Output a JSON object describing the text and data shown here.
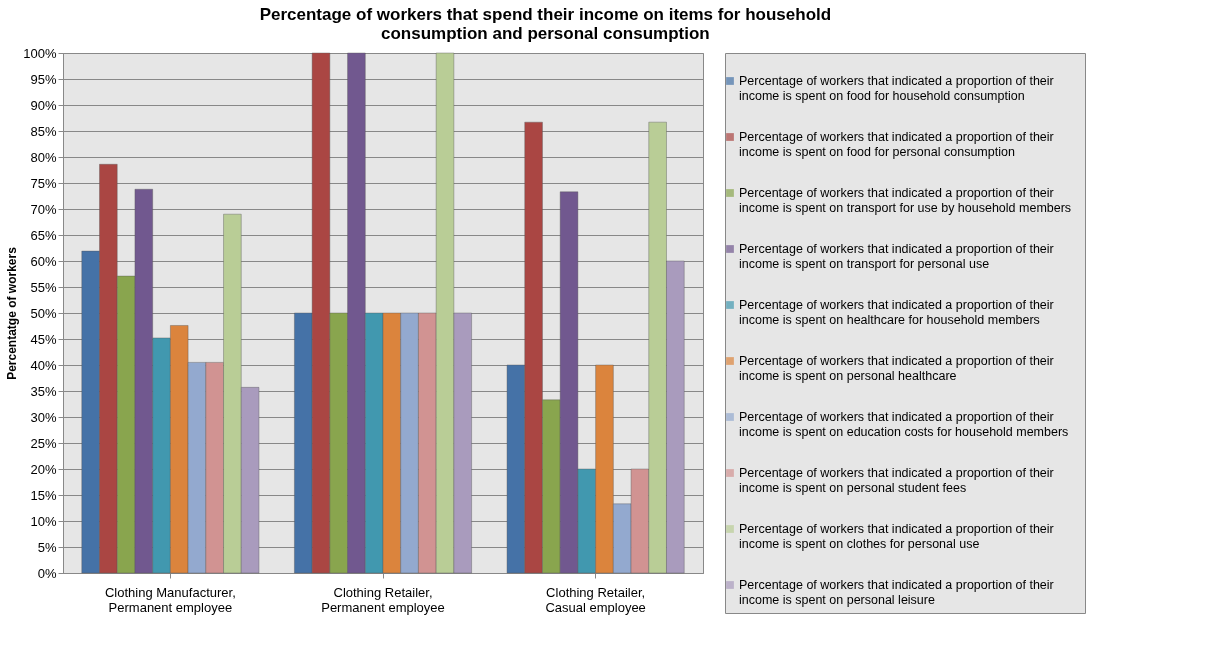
{
  "chart_data": {
    "type": "bar",
    "title": "Percentage of workers that spend their income on items for household consumption and personal consumption",
    "ylabel": "Percentatge of workers",
    "categories": [
      "Clothing Manufacturer, Permanent employee",
      "Clothing Retailer, Permanent employee",
      "Clothing Retailer, Casual employee"
    ],
    "series": [
      {
        "name": "Percentage of workers that indicated a proportion of their income is spent on food for household consumption",
        "color": "#4572a7",
        "values": [
          61.9,
          50,
          40
        ]
      },
      {
        "name": "Percentage of workers that indicated a proportion of their income is spent on food for personal consumption",
        "color": "#aa4643",
        "values": [
          78.6,
          100,
          86.7
        ]
      },
      {
        "name": "Percentage of workers that indicated a proportion of their income is spent on transport for use by household members",
        "color": "#89a54e",
        "values": [
          57.1,
          50,
          33.3
        ]
      },
      {
        "name": "Percentage of workers that indicated a proportion of their income is spent on transport for personal use",
        "color": "#71588f",
        "values": [
          73.8,
          100,
          73.3
        ]
      },
      {
        "name": "Percentage of workers that indicated a proportion of their income is spent on healthcare for household members",
        "color": "#4198af",
        "values": [
          45.2,
          50,
          20
        ]
      },
      {
        "name": "Percentage of workers that indicated a proportion of their income is spent on personal healthcare",
        "color": "#db843d",
        "values": [
          47.6,
          50,
          40
        ]
      },
      {
        "name": "Percentage of workers that indicated a proportion of their income is spent on education costs for household members",
        "color": "#93a9cf",
        "values": [
          40.5,
          50,
          13.3
        ]
      },
      {
        "name": "Percentage of workers that indicated a proportion of their income is spent on personal student fees",
        "color": "#d19392",
        "values": [
          40.5,
          50,
          20
        ]
      },
      {
        "name": "Percentage of workers that indicated a proportion of their income is spent on clothes for personal use",
        "color": "#b9cd96",
        "values": [
          69.0,
          100,
          86.7
        ]
      },
      {
        "name": "Percentage of workers that indicated a proportion of their income is spent on personal leisure",
        "color": "#a99bbd",
        "values": [
          35.7,
          50,
          60
        ]
      }
    ],
    "ylim": [
      0,
      100
    ],
    "yticks": [
      {
        "value": 0,
        "label": "0%"
      },
      {
        "value": 5,
        "label": "5%"
      },
      {
        "value": 10,
        "label": "10%"
      },
      {
        "value": 15,
        "label": "15%"
      },
      {
        "value": 20,
        "label": "20%"
      },
      {
        "value": 25,
        "label": "25%"
      },
      {
        "value": 30,
        "label": "30%"
      },
      {
        "value": 35,
        "label": "35%"
      },
      {
        "value": 40,
        "label": "40%"
      },
      {
        "value": 45,
        "label": "45%"
      },
      {
        "value": 50,
        "label": "50%"
      },
      {
        "value": 55,
        "label": "55%"
      },
      {
        "value": 60,
        "label": "60%"
      },
      {
        "value": 65,
        "label": "65%"
      },
      {
        "value": 70,
        "label": "70%"
      },
      {
        "value": 75,
        "label": "75%"
      },
      {
        "value": 80,
        "label": "80%"
      },
      {
        "value": 85,
        "label": "85%"
      },
      {
        "value": 90,
        "label": "90%"
      },
      {
        "value": 95,
        "label": "95%"
      },
      {
        "value": 100,
        "label": "100%"
      }
    ],
    "grid": "y",
    "legend": "right"
  }
}
